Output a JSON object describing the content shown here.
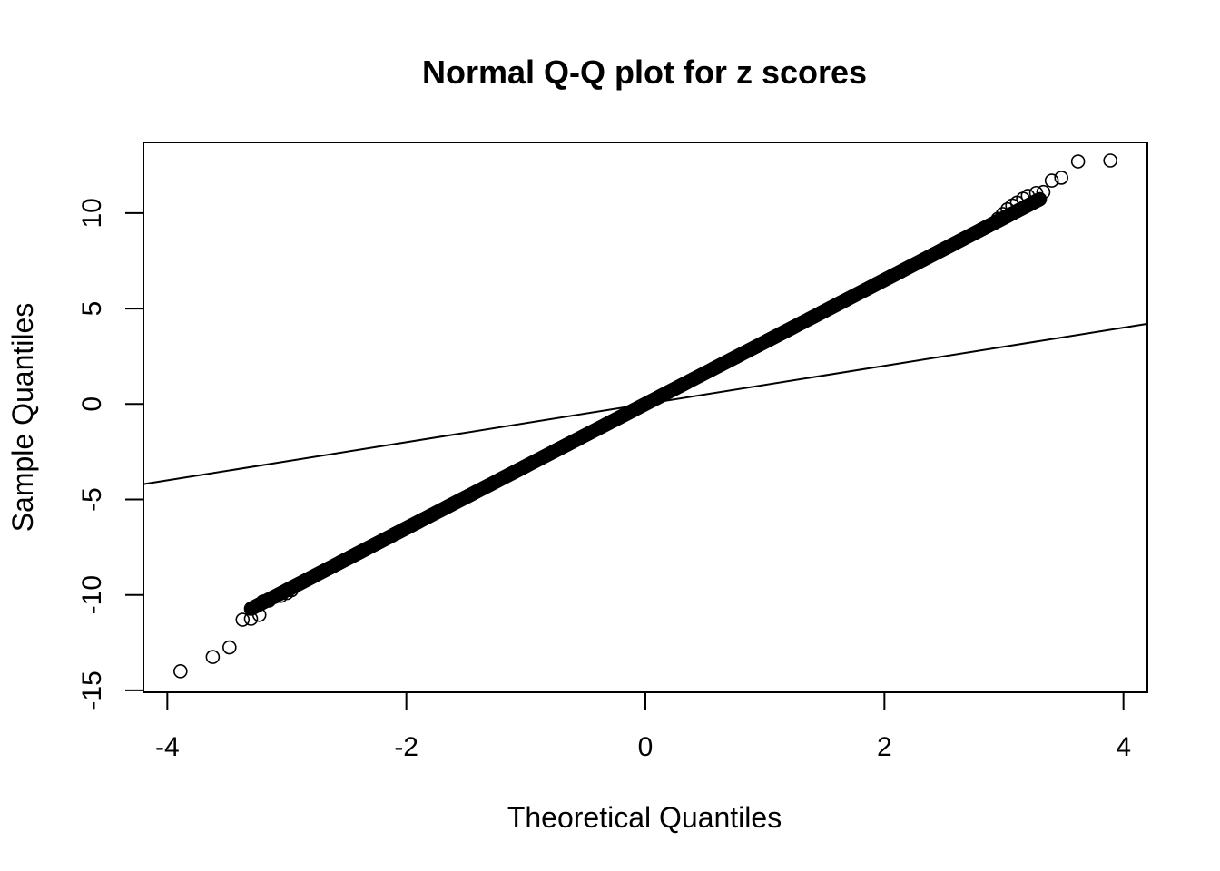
{
  "chart_data": {
    "type": "scatter",
    "title": "Normal Q-Q plot for z scores",
    "xlabel": "Theoretical Quantiles",
    "ylabel": "Sample Quantiles",
    "xlim": [
      -4.2,
      4.2
    ],
    "ylim": [
      -15.1,
      13.7
    ],
    "x_ticks": [
      -4,
      -2,
      0,
      2,
      4
    ],
    "x_tick_labels": [
      "-4",
      "-2",
      "0",
      "2",
      "4"
    ],
    "y_ticks": [
      -15,
      -10,
      -5,
      0,
      5,
      10
    ],
    "y_tick_labels": [
      "-15",
      "-10",
      "-5",
      "0",
      "5",
      "10"
    ],
    "grid": false,
    "legend": "none",
    "point_marker": "open-circle",
    "colors": {
      "points": "#000000",
      "line": "#000000",
      "axes": "#000000",
      "background": "#ffffff"
    },
    "reference_line": {
      "intercept": 0,
      "slope": 1,
      "x_range": [
        -4.2,
        4.2
      ]
    },
    "trend": {
      "intercept": 0,
      "slope": 3.25,
      "x_range": [
        -3.3,
        3.3
      ],
      "approx_points": 900
    },
    "series": [
      {
        "values": [
          {
            "x": -3.89,
            "y": -14.0
          },
          {
            "x": -3.62,
            "y": -13.25
          },
          {
            "x": -3.48,
            "y": -12.75
          },
          {
            "x": -3.37,
            "y": -11.3
          },
          {
            "x": -3.3,
            "y": -11.25
          },
          {
            "x": -3.23,
            "y": -11.05
          },
          {
            "x": -3.2,
            "y": -10.35
          },
          {
            "x": -3.15,
            "y": -10.3
          },
          {
            "x": -3.1,
            "y": -10.1
          },
          {
            "x": -3.05,
            "y": -10.05
          },
          {
            "x": -3.0,
            "y": -9.9
          },
          {
            "x": -2.96,
            "y": -9.75
          },
          {
            "x": 2.95,
            "y": 9.7
          },
          {
            "x": 2.99,
            "y": 9.95
          },
          {
            "x": 3.03,
            "y": 10.2
          },
          {
            "x": 3.07,
            "y": 10.4
          },
          {
            "x": 3.11,
            "y": 10.55
          },
          {
            "x": 3.16,
            "y": 10.75
          },
          {
            "x": 3.2,
            "y": 10.9
          },
          {
            "x": 3.27,
            "y": 11.05
          },
          {
            "x": 3.33,
            "y": 11.1
          },
          {
            "x": 3.4,
            "y": 11.7
          },
          {
            "x": 3.48,
            "y": 11.85
          },
          {
            "x": 3.62,
            "y": 12.7
          },
          {
            "x": 3.89,
            "y": 12.75
          }
        ]
      }
    ]
  }
}
